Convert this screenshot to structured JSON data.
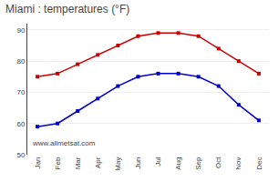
{
  "chart_data": {
    "type": "line",
    "title": "Miami : temperatures (°F)",
    "categories": [
      "Jan",
      "Feb",
      "Mar",
      "Apr",
      "May",
      "Jun",
      "Jul",
      "Aug",
      "Sep",
      "Oct",
      "Nov",
      "Dec"
    ],
    "series": [
      {
        "color": "#cc0000",
        "values": [
          75,
          76,
          79,
          82,
          85,
          88,
          89,
          89,
          88,
          84,
          80,
          76
        ]
      },
      {
        "color": "#0000cc",
        "values": [
          59,
          60,
          64,
          68,
          72,
          75,
          76,
          76,
          75,
          72,
          66,
          61
        ]
      }
    ],
    "marker": "square",
    "line_style": "solid",
    "ylim": [
      50,
      92
    ],
    "yticks": [
      50,
      60,
      70,
      80,
      90
    ],
    "grid": "y",
    "annotations": [
      "www.allmetsat.com"
    ]
  }
}
